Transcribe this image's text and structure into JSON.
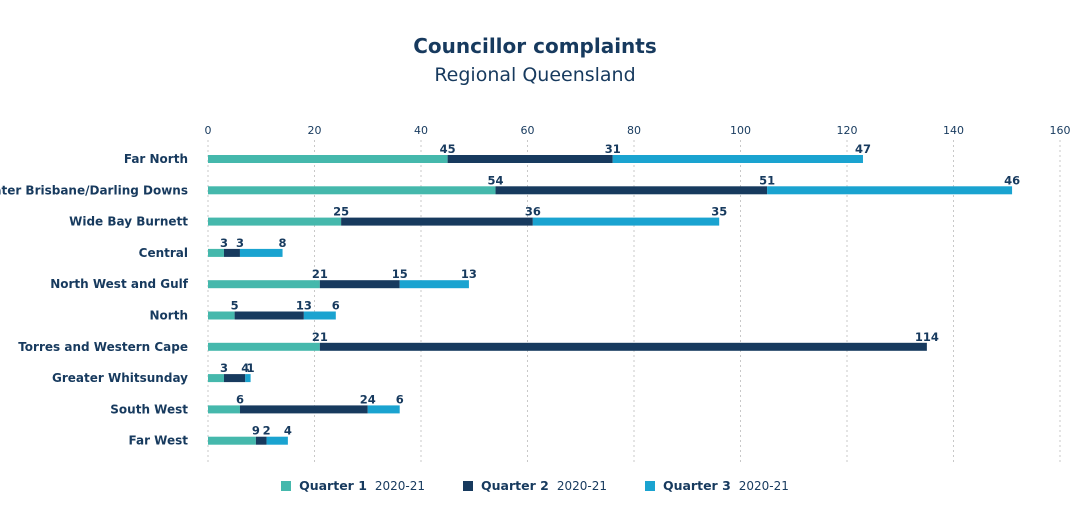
{
  "chart_data": {
    "type": "bar",
    "orientation": "horizontal",
    "stacked": true,
    "title": "Councillor complaints",
    "subtitle": "Regional Queensland",
    "xlim": [
      0,
      160
    ],
    "xticks": [
      0,
      20,
      40,
      60,
      80,
      100,
      120,
      140,
      160
    ],
    "grid": "vertical dotted",
    "legend_position": "bottom",
    "categories": [
      "Far North",
      "Greater Brisbane/Darling Downs",
      "Wide Bay Burnett",
      "Central",
      "North West and Gulf",
      "North",
      "Torres and Western Cape",
      "Greater Whitsunday",
      "South West",
      "Far West"
    ],
    "series": [
      {
        "name": "Quarter 1",
        "name_suffix": "2020-21",
        "color": "#45b8ac",
        "values": [
          45,
          54,
          25,
          3,
          21,
          5,
          21,
          3,
          6,
          9
        ]
      },
      {
        "name": "Quarter 2",
        "name_suffix": "2020-21",
        "color": "#173a5e",
        "values": [
          31,
          51,
          36,
          3,
          15,
          13,
          114,
          4,
          24,
          2
        ]
      },
      {
        "name": "Quarter 3",
        "name_suffix": "2020-21",
        "color": "#1aa3d0",
        "values": [
          47,
          46,
          35,
          8,
          13,
          6,
          null,
          1,
          6,
          4
        ]
      }
    ],
    "data_labels": [
      [
        "45",
        "31",
        "47"
      ],
      [
        "54",
        "51",
        "46"
      ],
      [
        "25",
        "36",
        "35"
      ],
      [
        "3",
        "3",
        "8"
      ],
      [
        "21",
        "15",
        "13"
      ],
      [
        "5",
        "13",
        "6"
      ],
      [
        "21",
        "114",
        null
      ],
      [
        "3",
        "4",
        "1"
      ],
      [
        "6",
        "24",
        "6"
      ],
      [
        "9",
        "2",
        "4"
      ]
    ]
  }
}
